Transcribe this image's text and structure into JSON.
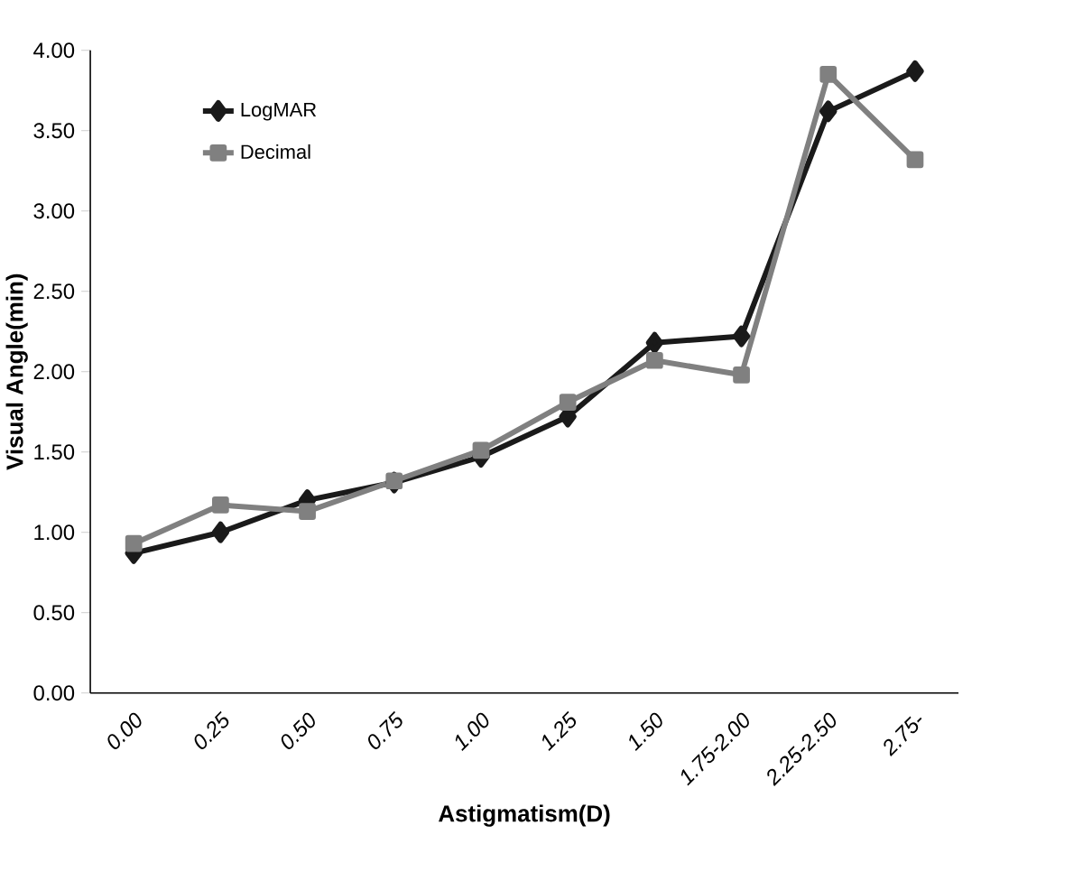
{
  "chart_data": {
    "type": "line",
    "xlabel": "Astigmatism(D)",
    "ylabel": "Visual Angle(min)",
    "categories": [
      "0.00",
      "0.25",
      "0.50",
      "0.75",
      "1.00",
      "1.25",
      "1.50",
      "1.75-2.00",
      "2.25-2.50",
      "2.75-"
    ],
    "series": [
      {
        "name": "LogMAR",
        "color": "#1a1a1a",
        "marker": "diamond",
        "values": [
          0.87,
          1.0,
          1.2,
          1.31,
          1.47,
          1.72,
          2.18,
          2.22,
          3.62,
          3.87
        ]
      },
      {
        "name": "Decimal",
        "color": "#808080",
        "marker": "square",
        "values": [
          0.93,
          1.17,
          1.13,
          1.32,
          1.51,
          1.81,
          2.07,
          1.98,
          3.85,
          3.32
        ]
      }
    ],
    "ylim": [
      0,
      4
    ],
    "yticks": [
      {
        "value": 0,
        "label": "0.00"
      },
      {
        "value": 0.5,
        "label": "0.50"
      },
      {
        "value": 1,
        "label": "1.00"
      },
      {
        "value": 1.5,
        "label": "1.50"
      },
      {
        "value": 2,
        "label": "2.00"
      },
      {
        "value": 2.5,
        "label": "2.50"
      },
      {
        "value": 3,
        "label": "3.00"
      },
      {
        "value": 3.5,
        "label": "3.50"
      },
      {
        "value": 4,
        "label": "4.00"
      }
    ],
    "grid": false,
    "legend": "top left"
  }
}
